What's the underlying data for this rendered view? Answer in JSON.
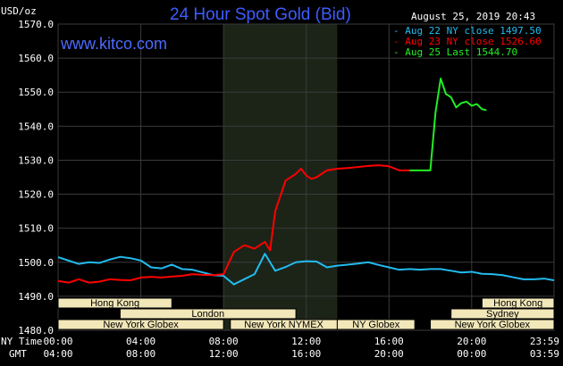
{
  "colors": {
    "background": "#000000",
    "plot_bg": "#000000",
    "night_band": "#1c2418",
    "grid": "#3a3a3a",
    "title": "#3d5cff",
    "market_box": "#f2e7b8",
    "series_aug22": "#22bbee",
    "series_aug23": "#ff0000",
    "series_aug25": "#22ee22"
  },
  "header": {
    "title": "24 Hour Spot Gold (Bid)",
    "datetime": "August 25, 2019 20:43",
    "unit": "USD/oz",
    "website": "www.kitco.com"
  },
  "legend": [
    {
      "key": "aug22",
      "label": "- Aug 22 NY close 1497.50",
      "color": "#22bbee"
    },
    {
      "key": "aug23",
      "label": "- Aug 23 NY close 1526.60",
      "color": "#ff0000"
    },
    {
      "key": "aug25",
      "label": "- Aug 25 Last 1544.70",
      "color": "#22ee22"
    }
  ],
  "axes": {
    "ny_time_label": "NY Time",
    "gmt_label": "GMT",
    "ny_ticks": [
      "00:00",
      "04:00",
      "08:00",
      "12:00",
      "16:00",
      "20:00",
      "23:59"
    ],
    "gmt_ticks": [
      "04:00",
      "08:00",
      "12:00",
      "16:00",
      "20:00",
      "00:00",
      "03:59"
    ],
    "y_ticks": [
      "1570.0",
      "1560.0",
      "1550.0",
      "1540.0",
      "1530.0",
      "1520.0",
      "1510.0",
      "1500.0",
      "1490.0",
      "1480.0"
    ]
  },
  "markets": [
    {
      "label": "Hong Kong",
      "start": 0.0,
      "end": 5.5,
      "row": 0
    },
    {
      "label": "Hong Kong",
      "start": 20.5,
      "end": 24.0,
      "row": 0
    },
    {
      "label": "London",
      "start": 3.0,
      "end": 11.5,
      "row": 1
    },
    {
      "label": "Sydney",
      "start": 19.0,
      "end": 24.0,
      "row": 1
    },
    {
      "label": "New York Globex",
      "start": 0.0,
      "end": 8.0,
      "row": 2
    },
    {
      "label": "New York NYMEX",
      "start": 8.33,
      "end": 13.5,
      "row": 2
    },
    {
      "label": "NY Globex",
      "start": 13.5,
      "end": 17.25,
      "row": 2
    },
    {
      "label": "New York Globex",
      "start": 18.0,
      "end": 24.0,
      "row": 2
    }
  ],
  "chart_data": {
    "type": "line",
    "title": "24 Hour Spot Gold (Bid)",
    "ylabel": "USD/oz",
    "xlabel": "",
    "xlim": [
      "00:00",
      "23:59"
    ],
    "ylim": [
      1480,
      1570
    ],
    "grid": true,
    "legend_position": "top-right",
    "shaded_band": [
      "08:00",
      "13:30"
    ],
    "series": [
      {
        "name": "Aug 22 NY close 1497.50",
        "x": [
          "00:00",
          "00:30",
          "01:00",
          "01:30",
          "02:00",
          "02:30",
          "03:00",
          "03:30",
          "04:00",
          "04:30",
          "05:00",
          "05:30",
          "06:00",
          "06:30",
          "07:00",
          "07:30",
          "08:00",
          "08:30",
          "09:00",
          "09:30",
          "10:00",
          "10:30",
          "11:00",
          "11:30",
          "12:00",
          "12:30",
          "13:00",
          "13:30",
          "14:00",
          "14:30",
          "15:00",
          "15:30",
          "16:00",
          "16:30",
          "17:00",
          "17:30",
          "18:00",
          "18:30",
          "19:00",
          "19:30",
          "20:00",
          "20:30",
          "21:00",
          "21:30",
          "22:00",
          "22:30",
          "23:00",
          "23:30",
          "23:59"
        ],
        "values": [
          1501.5,
          1500.5,
          1499.5,
          1500.0,
          1499.8,
          1500.8,
          1501.6,
          1501.2,
          1500.5,
          1498.5,
          1498.2,
          1499.3,
          1498.0,
          1497.8,
          1497.0,
          1496.2,
          1496.0,
          1493.5,
          1495.0,
          1496.5,
          1502.5,
          1497.5,
          1498.6,
          1500.0,
          1500.3,
          1500.2,
          1498.5,
          1499.0,
          1499.3,
          1499.6,
          1500.0,
          1499.2,
          1498.5,
          1497.8,
          1498.0,
          1497.8,
          1498.0,
          1498.0,
          1497.5,
          1497.0,
          1497.2,
          1496.6,
          1496.5,
          1496.2,
          1495.6,
          1495.0,
          1495.0,
          1495.2,
          1494.7
        ],
        "color": "#22bbee"
      },
      {
        "name": "Aug 23 NY close 1526.60",
        "x": [
          "00:00",
          "00:30",
          "01:00",
          "01:30",
          "02:00",
          "02:30",
          "03:00",
          "03:30",
          "04:00",
          "04:30",
          "05:00",
          "05:30",
          "06:00",
          "06:30",
          "07:00",
          "07:30",
          "08:00",
          "08:30",
          "09:00",
          "09:30",
          "10:00",
          "10:15",
          "10:30",
          "11:00",
          "11:30",
          "11:45",
          "12:00",
          "12:15",
          "12:30",
          "13:00",
          "13:30",
          "14:00",
          "14:30",
          "15:00",
          "15:30",
          "16:00",
          "16:30",
          "17:00"
        ],
        "values": [
          1494.5,
          1494.0,
          1495.0,
          1494.0,
          1494.3,
          1495.0,
          1494.8,
          1494.7,
          1495.5,
          1495.7,
          1495.5,
          1495.8,
          1496.0,
          1496.5,
          1496.3,
          1496.2,
          1496.5,
          1503.0,
          1505.0,
          1504.0,
          1506.0,
          1503.5,
          1515.0,
          1524.0,
          1526.0,
          1527.5,
          1525.5,
          1524.5,
          1525.0,
          1527.0,
          1527.5,
          1527.7,
          1528.0,
          1528.3,
          1528.5,
          1528.2,
          1527.0,
          1527.0
        ],
        "color": "#ff0000"
      },
      {
        "name": "Aug 25 Last 1544.70",
        "x": [
          "17:00",
          "18:00",
          "18:15",
          "18:30",
          "18:45",
          "19:00",
          "19:15",
          "19:30",
          "19:45",
          "20:00",
          "20:15",
          "20:30",
          "20:43"
        ],
        "values": [
          1527.0,
          1527.0,
          1544.0,
          1554.0,
          1549.5,
          1548.5,
          1545.5,
          1546.8,
          1547.2,
          1546.0,
          1546.5,
          1545.0,
          1544.7
        ],
        "color": "#22ee22"
      }
    ]
  }
}
